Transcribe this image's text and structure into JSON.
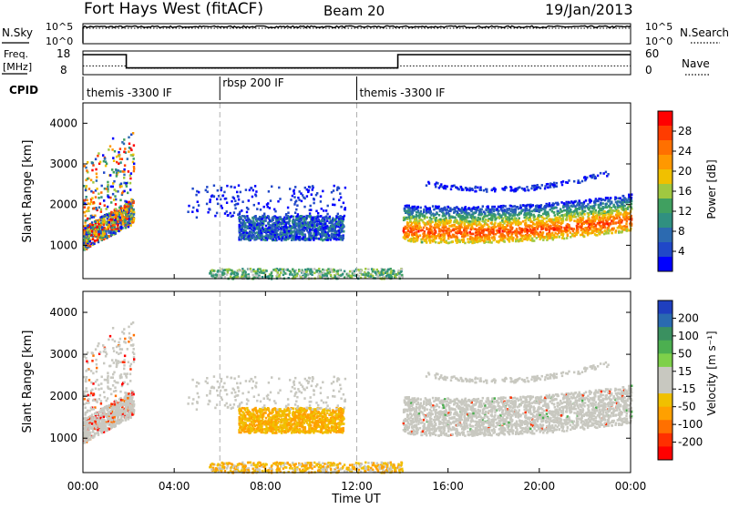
{
  "header": {
    "station": "Fort Hays West (fitACF)",
    "beam": "Beam 20",
    "date": "19/Jan/2013"
  },
  "noise_panel": {
    "left_label": "N.Sky",
    "left_ticks": [
      "10^5",
      "10^0"
    ],
    "right_label": "N.Search",
    "right_ticks": [
      "10^5",
      "10^0"
    ]
  },
  "freq_panel": {
    "left_label_1": "Freq.",
    "left_label_2": "[MHz]",
    "left_ticks": [
      "18",
      "8"
    ],
    "right_label": "Nave",
    "right_ticks": [
      "60",
      "0"
    ]
  },
  "cpid_panel": {
    "label": "CPID",
    "segments": [
      {
        "start": "00:00",
        "end": "06:00",
        "label": "themis -3300 IF"
      },
      {
        "start": "06:00",
        "end": "12:00",
        "label": "rbsp 200 IF"
      },
      {
        "start": "12:00",
        "end": "24:00",
        "label": "themis -3300 IF"
      }
    ]
  },
  "colorbars": {
    "power": {
      "title": "Power [dB]",
      "ticks": [
        "28",
        "24",
        "20",
        "16",
        "12",
        "8",
        "4"
      ],
      "colors": [
        "#ff0000",
        "#ff3c00",
        "#ff7000",
        "#ff9800",
        "#f0c000",
        "#a0c840",
        "#40a060",
        "#309080",
        "#2c6ab0",
        "#2048c8",
        "#0000ff"
      ]
    },
    "velocity": {
      "title": "Velocity [m s⁻¹]",
      "ticks": [
        "200",
        "100",
        "50",
        "15",
        "-15",
        "-50",
        "-100",
        "-200"
      ],
      "colors": [
        "#1f3fbf",
        "#2a6ab0",
        "#3a9060",
        "#4caf50",
        "#7ed04a",
        "#c8c8c0",
        "#c8c8c0",
        "#f0c000",
        "#ffa000",
        "#ff7000",
        "#ff3000",
        "#ff0000"
      ]
    }
  },
  "chart_data": {
    "type": "heatmap",
    "x_label": "Time UT",
    "y_label": "Slant Range [km]",
    "x_ticks": [
      "00:00",
      "04:00",
      "08:00",
      "12:00",
      "16:00",
      "20:00",
      "00:00"
    ],
    "y_ticks": [
      1000,
      2000,
      3000,
      4000
    ],
    "ylim": [
      180,
      4500
    ],
    "xlim_hours": [
      0,
      24
    ],
    "grid": false,
    "dashed_lines_hours": [
      6,
      12
    ],
    "panels": [
      "power",
      "velocity"
    ],
    "noise_sky_log": 4.4,
    "noise_search_log": 4.0,
    "freq_mhz": [
      {
        "start": 0,
        "end": 1.9,
        "value": 17.5
      },
      {
        "start": 1.9,
        "end": 13.8,
        "value": 10.2
      },
      {
        "start": 13.8,
        "end": 24,
        "value": 17.5
      }
    ],
    "nave": [
      {
        "start": 0,
        "end": 1.9,
        "value": 20
      },
      {
        "start": 1.9,
        "end": 13.8,
        "value": 12
      },
      {
        "start": 13.8,
        "end": 24,
        "value": 20
      }
    ]
  }
}
